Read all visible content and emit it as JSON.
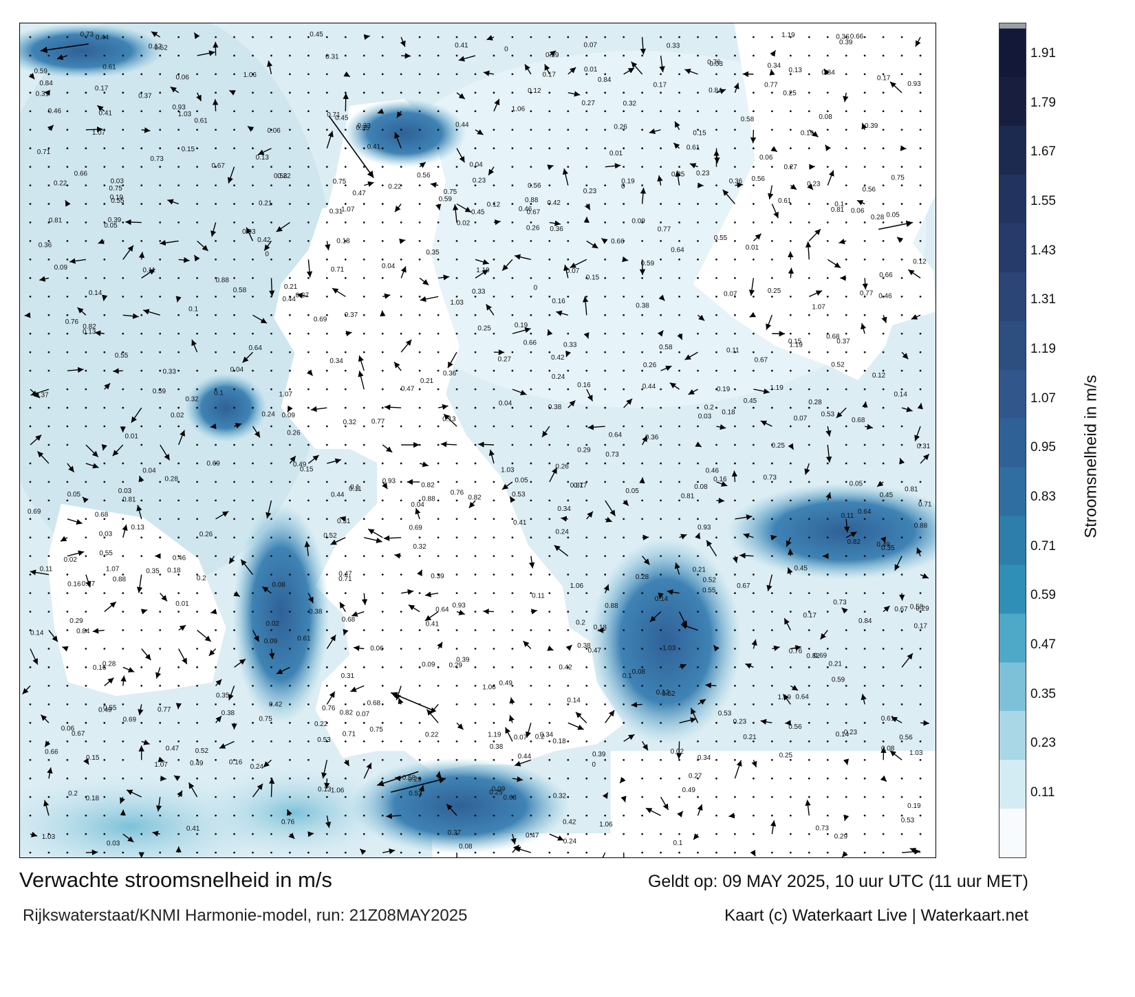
{
  "title": "Verwachte stroomsnelheid in m/s",
  "subtitle": "Rijkswaterstaat/KNMI Harmonie-model, run: 21Z08MAY2025",
  "valid_time": "Geldt op: 09 MAY 2025, 10 uur UTC (11 uur MET)",
  "credit": "Kaart (c) Waterkaart Live | Waterkaart.net",
  "legend": {
    "title": "Stroomsnelheid in m/s",
    "ticks": [
      "1.91",
      "1.79",
      "1.67",
      "1.55",
      "1.43",
      "1.31",
      "1.19",
      "1.07",
      "0.95",
      "0.83",
      "0.71",
      "0.59",
      "0.47",
      "0.35",
      "0.23",
      "0.11"
    ],
    "colors": [
      "#f7fbfd",
      "#d3ebf3",
      "#a9d7e6",
      "#7cc1d8",
      "#4ea9c8",
      "#2f8fb6",
      "#2d7eab",
      "#2f6ea1",
      "#2f6197",
      "#31568c",
      "#2c4f80",
      "#2a4576",
      "#263b6a",
      "#22335f",
      "#1d2a50",
      "#181f3e",
      "#131838"
    ],
    "top_color": "#9aa0a6"
  },
  "map_labels": [
    {
      "v": "0.17"
    },
    {
      "v": "0.18"
    },
    {
      "v": "0.19"
    },
    {
      "v": "0.16"
    },
    {
      "v": "0.14"
    },
    {
      "v": "0.25"
    },
    {
      "v": "0.13"
    },
    {
      "v": "0.09"
    },
    {
      "v": "0.11"
    },
    {
      "v": "0.23"
    },
    {
      "v": "0.29"
    },
    {
      "v": "0.27"
    },
    {
      "v": "0.21"
    },
    {
      "v": "0.26"
    },
    {
      "v": "0.31"
    },
    {
      "v": "0.08"
    },
    {
      "v": "0.07"
    },
    {
      "v": "0.06"
    },
    {
      "v": "0.05"
    },
    {
      "v": "0.12"
    },
    {
      "v": "0.15"
    },
    {
      "v": "0.1"
    },
    {
      "v": "0.04"
    },
    {
      "v": "0.03"
    },
    {
      "v": "0.47"
    },
    {
      "v": "0.35"
    },
    {
      "v": "0.53"
    },
    {
      "v": "0.75"
    },
    {
      "v": "0.76"
    },
    {
      "v": "0.69"
    },
    {
      "v": "0.68"
    },
    {
      "v": "0.38"
    },
    {
      "v": "0.55"
    },
    {
      "v": "0.44"
    },
    {
      "v": "0.67"
    },
    {
      "v": "0.49"
    },
    {
      "v": "0.84"
    },
    {
      "v": "0.82"
    },
    {
      "v": "0.77"
    },
    {
      "v": "0.45"
    },
    {
      "v": "0.66"
    },
    {
      "v": "0.71"
    },
    {
      "v": "0.64"
    },
    {
      "v": "0.73"
    },
    {
      "v": "0.61"
    },
    {
      "v": "0.56"
    },
    {
      "v": "0.52"
    },
    {
      "v": "0.59"
    },
    {
      "v": "1.03"
    },
    {
      "v": "1.06"
    },
    {
      "v": "1.19"
    },
    {
      "v": "1.07"
    },
    {
      "v": "0.93"
    },
    {
      "v": "0.88"
    },
    {
      "v": "0.81"
    },
    {
      "v": "0.58"
    },
    {
      "v": "0.36"
    },
    {
      "v": "0.39"
    },
    {
      "v": "0.41"
    },
    {
      "v": "0.42"
    },
    {
      "v": "0.46"
    },
    {
      "v": "0.34"
    },
    {
      "v": "0.33"
    },
    {
      "v": "0.22"
    },
    {
      "v": "0.2"
    },
    {
      "v": "0.02"
    },
    {
      "v": "0.01"
    },
    {
      "v": "0"
    },
    {
      "v": "0.24"
    },
    {
      "v": "0.28"
    },
    {
      "v": "0.32"
    },
    {
      "v": "0.37"
    }
  ]
}
